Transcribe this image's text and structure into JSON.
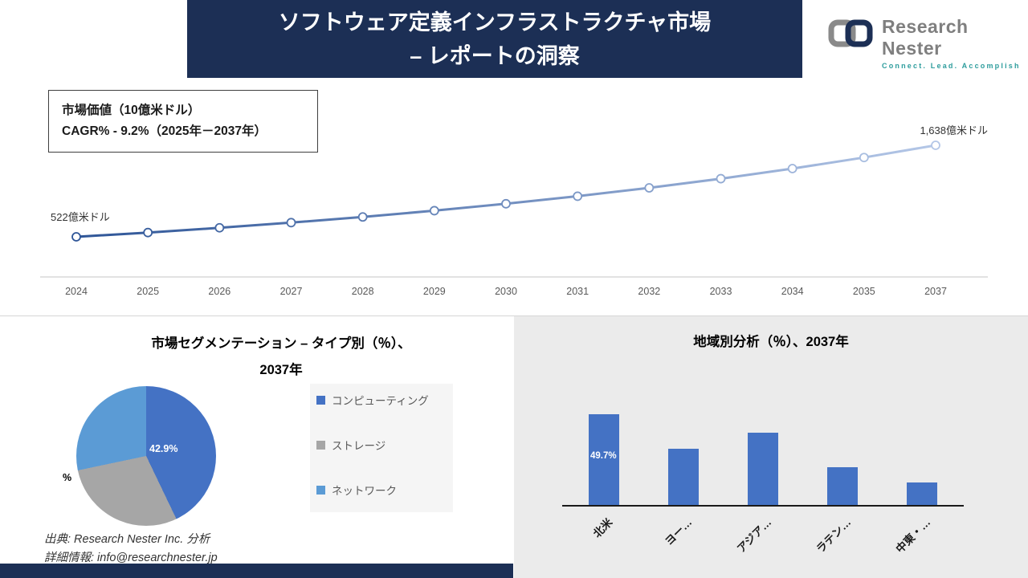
{
  "banner": {
    "title_line1": "ソフトウェア定義インフラストラクチャ市場",
    "title_line2": "– レポートの洞察"
  },
  "logo": {
    "brand": "Research Nester",
    "tagline": "Connect. Lead. Accomplish"
  },
  "info_box": {
    "line1": "市場価値（10億米ドル）",
    "line2": "CAGR% - 9.2%（2025年－2037年）"
  },
  "chart_data": [
    {
      "type": "line",
      "title": "市場価値（10億米ドル）",
      "x": [
        "2024",
        "2025",
        "2026",
        "2027",
        "2028",
        "2029",
        "2030",
        "2031",
        "2032",
        "2033",
        "2034",
        "2035",
        "2037"
      ],
      "values": [
        522,
        574,
        632,
        695,
        764,
        841,
        925,
        1017,
        1119,
        1231,
        1354,
        1489,
        1638
      ],
      "start_label": "522億米ドル",
      "end_label": "1,638億米ドル",
      "line_gradient": [
        "#2E5597",
        "#B4C7E7"
      ],
      "grid": false,
      "marker": "circle"
    },
    {
      "type": "pie",
      "title_line1": "市場セグメンテーション – タイプ別（％）、",
      "title_line2": "2037年",
      "labels": [
        "コンピューティング",
        "ストレージ",
        "ネットワーク"
      ],
      "values": [
        42.9,
        28.8,
        28.3
      ],
      "colors": [
        "#4472C4",
        "#A6A6A6",
        "#5B9BD5"
      ],
      "data_label": "42.9%",
      "partial_label": "%",
      "legend_position": "right"
    },
    {
      "type": "bar",
      "title": "地域別分析（％）、2037年",
      "categories": [
        "北米",
        "ヨー…",
        "アジア…",
        "ラテン…",
        "中東・…"
      ],
      "values": [
        49.7,
        30.8,
        39.6,
        20.7,
        12.3
      ],
      "bar_color": "#4472C4",
      "data_label": "49.7%",
      "ylim": [
        0,
        55
      ]
    }
  ],
  "footer": {
    "source": "出典: Research Nester Inc. 分析",
    "details": "詳細情報: info@researchnester.jp"
  }
}
